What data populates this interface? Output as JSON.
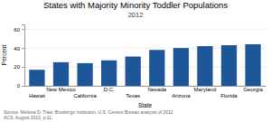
{
  "chart_data": {
    "type": "bar",
    "title": "States with Majority Minority Toddler Populations",
    "subtitle": "2012",
    "xlabel": "State",
    "ylabel": "Percent",
    "source": "Source: Melissa D. Traw, Brookings Institution, U.S. Census Bureau analysis of 2012\nACS. August 2013, p.11.",
    "categories": [
      "Hawaii",
      "New Mexico",
      "California",
      "D.C.",
      "Texas",
      "Nevada",
      "Arizona",
      "Maryland",
      "Florida",
      "Georgia"
    ],
    "values": [
      17,
      25,
      24,
      27,
      31,
      38,
      40,
      42,
      43,
      44
    ],
    "color": "#1e5799",
    "ylim": [
      0,
      65
    ],
    "yticks": [
      0,
      20,
      40,
      60
    ],
    "grid": true
  }
}
